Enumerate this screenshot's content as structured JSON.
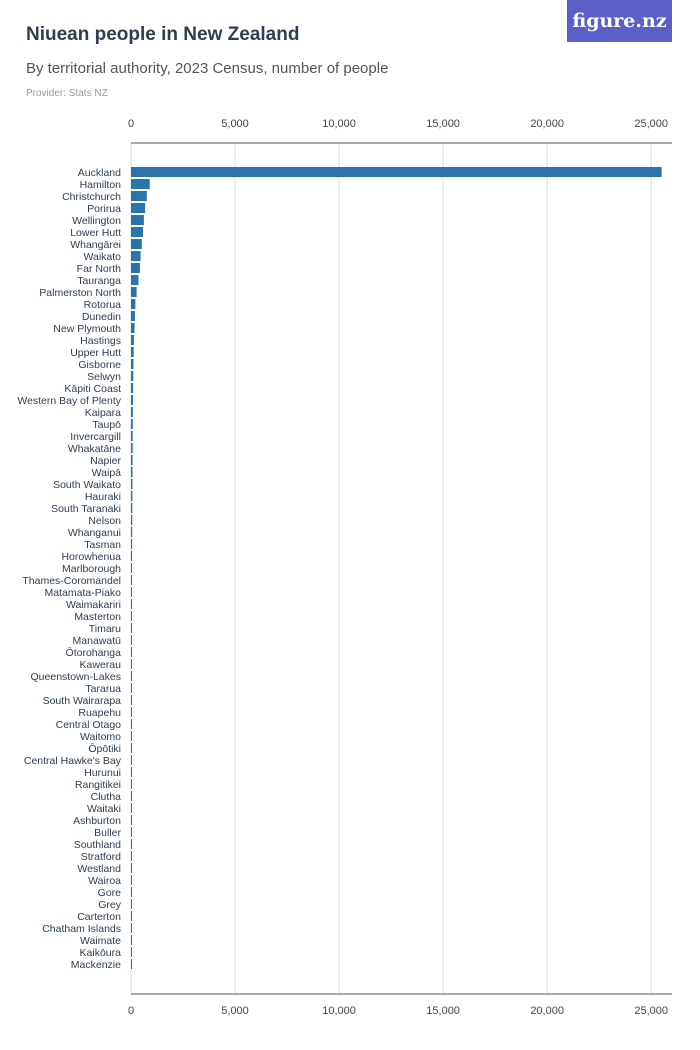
{
  "header": {
    "title": "Niuean people in New Zealand",
    "subtitle": "By territorial authority, 2023 Census, number of people",
    "provider": "Provider: Stats NZ",
    "logo_text": "figure.nz"
  },
  "colors": {
    "bar": "#2a74ad",
    "logo_bg": "#5b5fc7",
    "grid": "#dddddd"
  },
  "chart_data": {
    "type": "bar",
    "orientation": "horizontal",
    "title": "Niuean people in New Zealand",
    "subtitle": "By territorial authority, 2023 Census, number of people",
    "xlim": [
      0,
      26000
    ],
    "ticks": [
      0,
      5000,
      10000,
      15000,
      20000,
      25000
    ],
    "tick_labels": [
      "0",
      "5,000",
      "10,000",
      "15,000",
      "20,000",
      "25,000"
    ],
    "grid": true,
    "categories": [
      "Auckland",
      "Hamilton",
      "Christchurch",
      "Porirua",
      "Wellington",
      "Lower Hutt",
      "Whangārei",
      "Waikato",
      "Far North",
      "Tauranga",
      "Palmerston North",
      "Rotorua",
      "Dunedin",
      "New Plymouth",
      "Hastings",
      "Upper Hutt",
      "Gisborne",
      "Selwyn",
      "Kāpiti Coast",
      "Western Bay of Plenty",
      "Kaipara",
      "Taupō",
      "Invercargill",
      "Whakatāne",
      "Napier",
      "Waipā",
      "South Waikato",
      "Hauraki",
      "South Taranaki",
      "Nelson",
      "Whanganui",
      "Tasman",
      "Horowhenua",
      "Marlborough",
      "Thames-Coromandel",
      "Matamata-Piako",
      "Waimakariri",
      "Masterton",
      "Timaru",
      "Manawatū",
      "Ōtorohanga",
      "Kawerau",
      "Queenstown-Lakes",
      "Tararua",
      "South Wairarapa",
      "Ruapehu",
      "Central Otago",
      "Waitomo",
      "Ōpōtiki",
      "Central Hawke's Bay",
      "Hurunui",
      "Rangitikei",
      "Clutha",
      "Waitaki",
      "Ashburton",
      "Buller",
      "Southland",
      "Stratford",
      "Westland",
      "Wairoa",
      "Gore",
      "Grey",
      "Carterton",
      "Chatham Islands",
      "Waimate",
      "Kaikōura",
      "Mackenzie"
    ],
    "values": [
      25500,
      900,
      760,
      680,
      620,
      580,
      520,
      460,
      430,
      360,
      270,
      210,
      190,
      170,
      140,
      130,
      120,
      110,
      100,
      95,
      90,
      85,
      80,
      78,
      75,
      72,
      68,
      66,
      63,
      60,
      58,
      55,
      52,
      50,
      48,
      45,
      43,
      40,
      38,
      36,
      34,
      32,
      30,
      28,
      26,
      24,
      22,
      20,
      18,
      16,
      15,
      14,
      13,
      12,
      11,
      10,
      9,
      8,
      7,
      6,
      5,
      5,
      4,
      3,
      3,
      2,
      2
    ]
  }
}
